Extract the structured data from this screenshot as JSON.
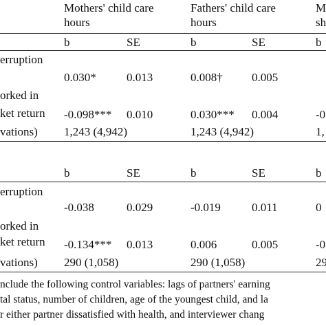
{
  "header": {
    "col1": [
      "Mothers' child care",
      "hours"
    ],
    "col2": [
      "Fathers' child care",
      "hours"
    ],
    "col3": [
      "M",
      "sh"
    ]
  },
  "panel1": {
    "sub": {
      "b1": "b",
      "se1": "SE",
      "b2": "b",
      "se2": "SE",
      "b3": "b"
    },
    "row1": {
      "label": "erruption",
      "b1": "0.030*",
      "se1": "0.013",
      "b2": "0.008†",
      "se2": "0.005"
    },
    "row2": {
      "label1": "orked in",
      "label2": "ket return",
      "b1": "-0.098***",
      "se1": "0.010",
      "b2": "0.030***",
      "se2": "0.004",
      "b3": "-0"
    },
    "row3": {
      "label": "vations)",
      "n1": "1,243 (4,942)",
      "n2": "1,243 (4,942)",
      "n3": "1,"
    }
  },
  "panel2": {
    "sub": {
      "b1": "b",
      "se1": "SE",
      "b2": "b",
      "se2": "SE",
      "b3": "b"
    },
    "row1": {
      "label": "erruption",
      "b1": "-0.038",
      "se1": "0.029",
      "b2": "-0.019",
      "se2": "0.011",
      "b3": "0"
    },
    "row2": {
      "label1": "orked in",
      "label2": "ket return",
      "b1": "-0.134***",
      "se1": "0.013",
      "b2": "0.006",
      "se2": "0.005",
      "b3": "-0"
    },
    "row3": {
      "label": "vations)",
      "n1": "290 (1,058)",
      "n2": "290 (1,058)",
      "n3": "29"
    }
  },
  "footnote": [
    "nclude the following control variables: lags of partners' earning",
    "tal status, number of children, age of the youngest child, and la",
    "r either partner dissatisfied with health, and interviewer chang"
  ]
}
